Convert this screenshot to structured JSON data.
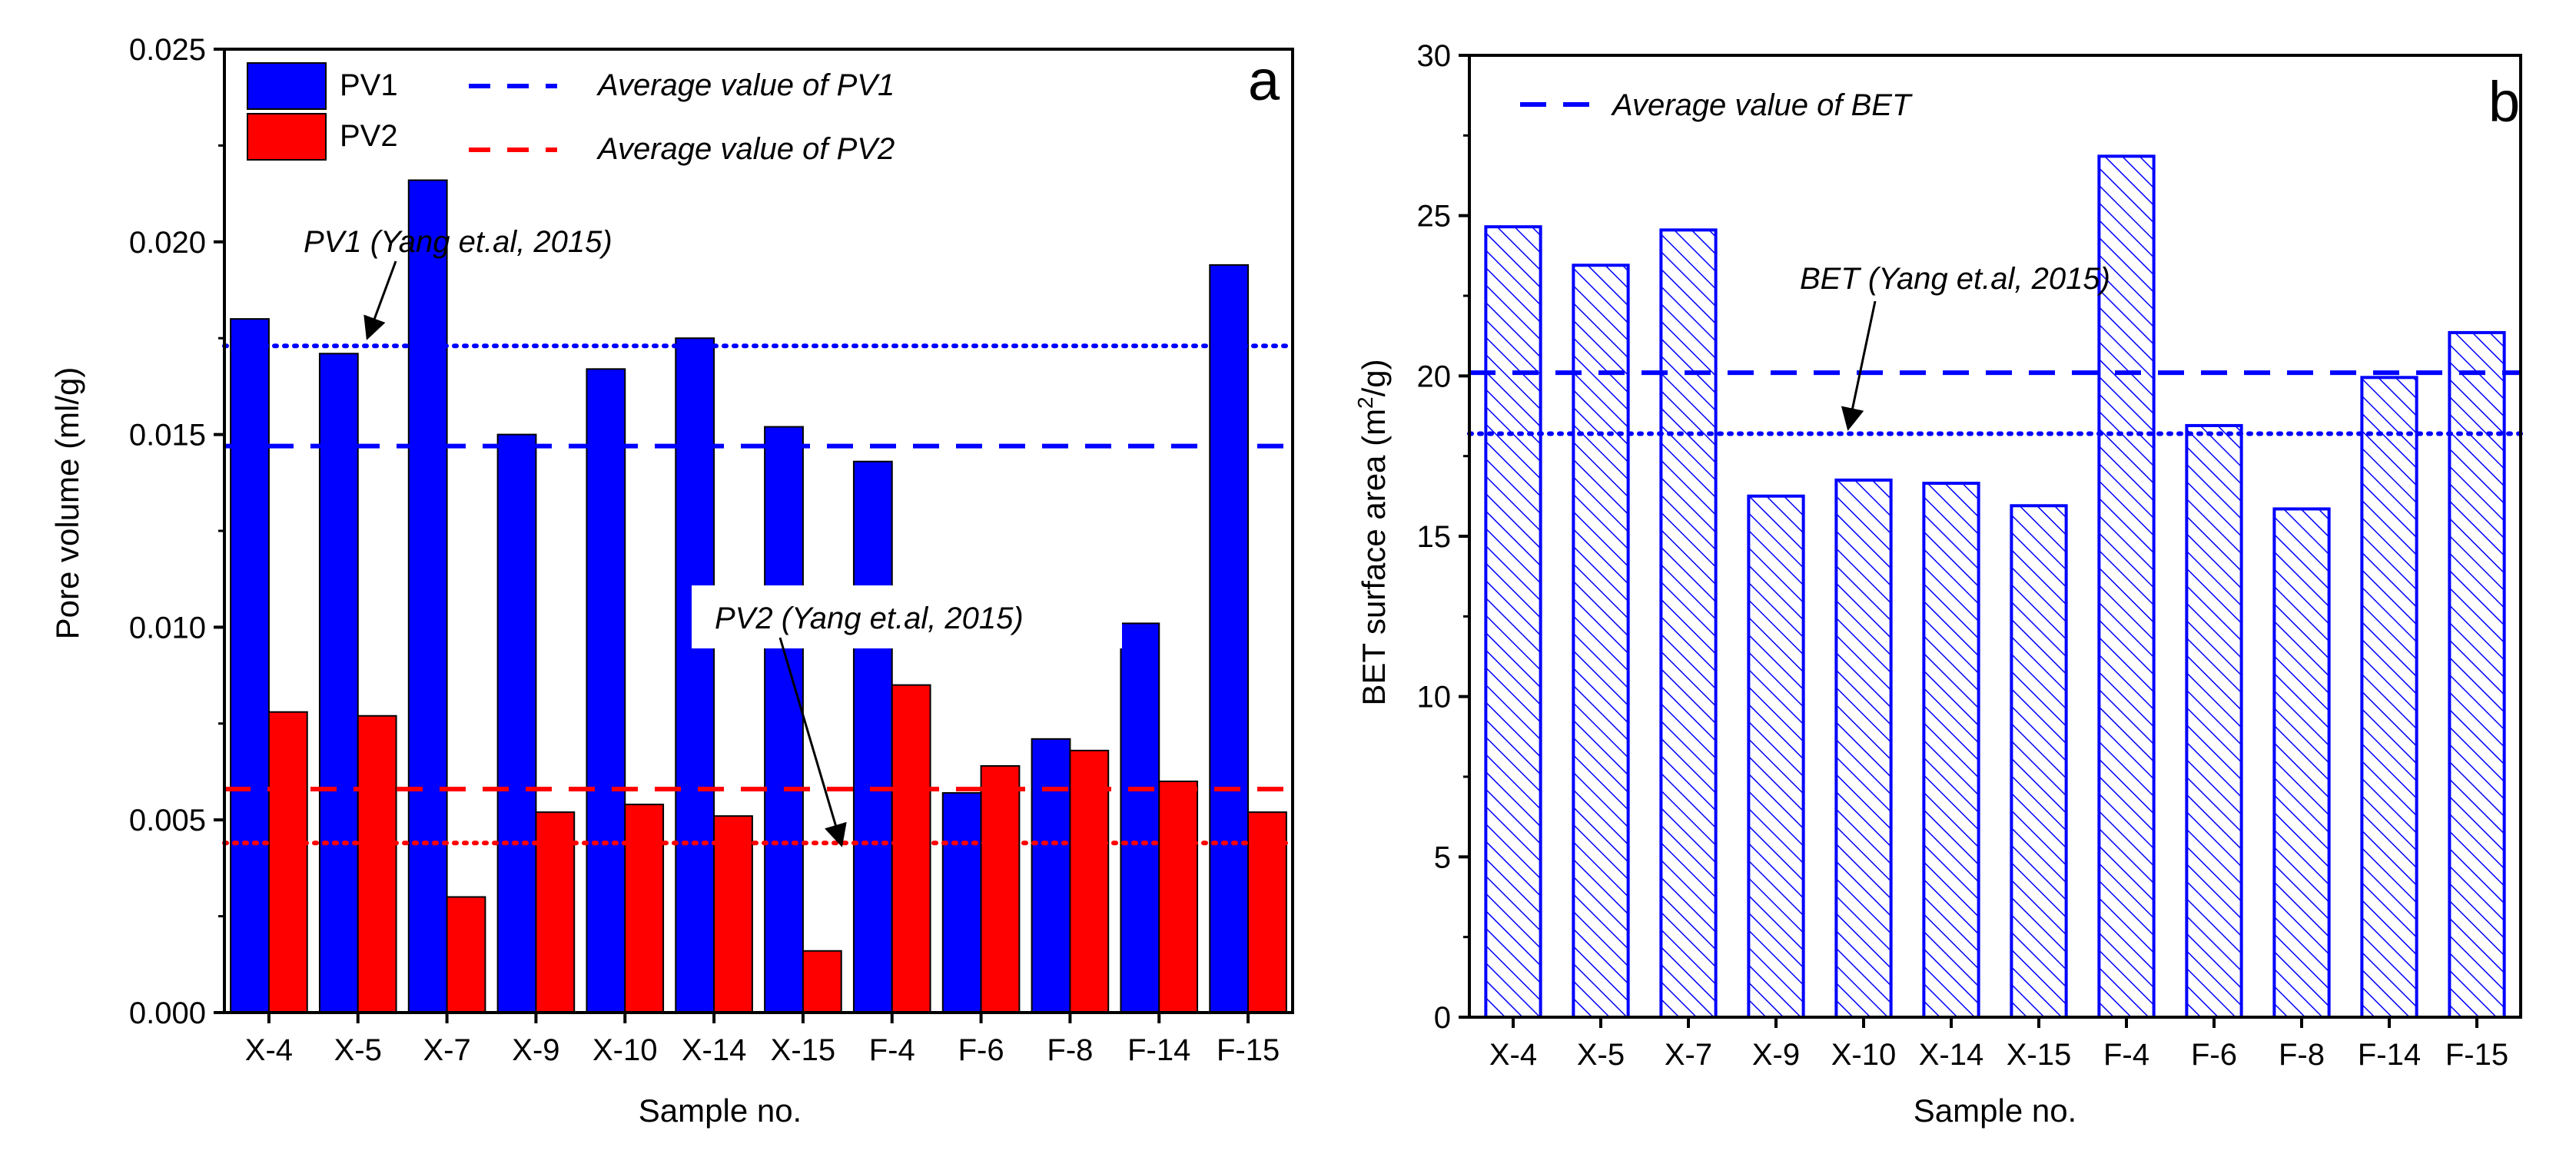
{
  "chart_data": [
    {
      "type": "bar",
      "panel_label": "a",
      "xlabel": "Sample no.",
      "ylabel": "Pore volume (ml/g)",
      "ylim": [
        0,
        0.025
      ],
      "yticks": [
        "0.000",
        "0.005",
        "0.010",
        "0.015",
        "0.020",
        "0.025"
      ],
      "categories": [
        "X-4",
        "X-5",
        "X-7",
        "X-9",
        "X-10",
        "X-14",
        "X-15",
        "F-4",
        "F-6",
        "F-8",
        "F-14",
        "F-15"
      ],
      "series": [
        {
          "name": "PV1",
          "color": "#0000ff",
          "values": [
            0.018,
            0.0171,
            0.0216,
            0.015,
            0.0167,
            0.0175,
            0.0152,
            0.0143,
            0.0057,
            0.0071,
            0.0101,
            0.0194
          ]
        },
        {
          "name": "PV2",
          "color": "#ff0000",
          "values": [
            0.0078,
            0.0077,
            0.003,
            0.0052,
            0.0054,
            0.0051,
            0.0016,
            0.0085,
            0.0064,
            0.0068,
            0.006,
            0.0052
          ]
        }
      ],
      "reference_lines": [
        {
          "label": "Average value of PV1",
          "value": 0.0147,
          "color": "#0000ff",
          "style": "dashed"
        },
        {
          "label": "Average value of PV2",
          "value": 0.0058,
          "color": "#ff0000",
          "style": "dashed"
        },
        {
          "label": "PV1 (Yang et.al, 2015)",
          "value": 0.0173,
          "color": "#0000ff",
          "style": "dotted"
        },
        {
          "label": "PV2 (Yang et.al, 2015)",
          "value": 0.0044,
          "color": "#ff0000",
          "style": "dotted"
        }
      ],
      "legend_position": "top-left"
    },
    {
      "type": "bar",
      "panel_label": "b",
      "xlabel": "Sample no.",
      "ylabel": "BET surface area (m²/g)",
      "ylabel_parts": [
        "BET surface area (m",
        "2",
        "/g)"
      ],
      "ylim": [
        0,
        30
      ],
      "yticks": [
        "0",
        "5",
        "10",
        "15",
        "20",
        "25",
        "30"
      ],
      "categories": [
        "X-4",
        "X-5",
        "X-7",
        "X-9",
        "X-10",
        "X-14",
        "X-15",
        "F-4",
        "F-6",
        "F-8",
        "F-14",
        "F-15"
      ],
      "series": [
        {
          "color": "#0000ff",
          "fill": "hatched",
          "values": [
            24.7,
            23.5,
            24.6,
            16.3,
            16.8,
            16.7,
            16.0,
            26.9,
            18.5,
            15.9,
            20.0,
            21.4
          ]
        }
      ],
      "reference_lines": [
        {
          "label": "Average value of BET",
          "value": 20.1,
          "color": "#0000ff",
          "style": "dashed"
        },
        {
          "label": "BET (Yang et.al, 2015)",
          "value": 18.2,
          "color": "#0000ff",
          "style": "dotted"
        }
      ],
      "legend_position": "top-left"
    }
  ]
}
